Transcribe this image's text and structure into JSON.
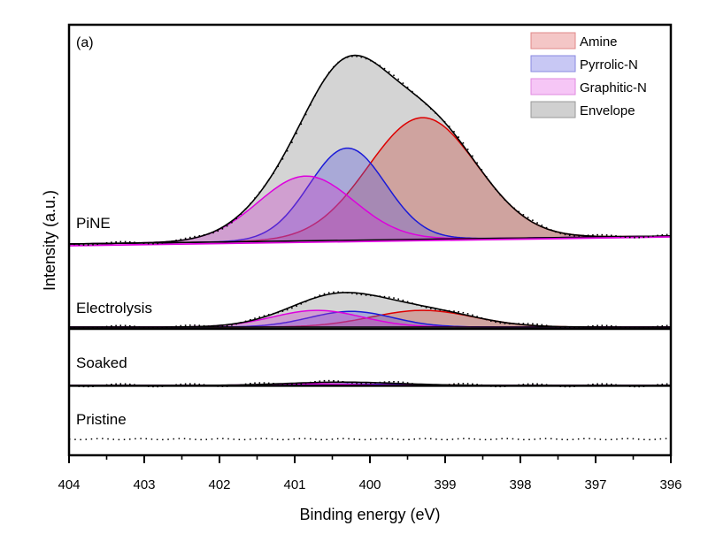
{
  "chart_data": {
    "type": "area",
    "panel_letter": "(a)",
    "xlabel": "Binding energy (eV)",
    "ylabel": "Intensity (a.u.)",
    "xlim": [
      404,
      396
    ],
    "x_reversed": true,
    "x_ticks": [
      404,
      403,
      402,
      401,
      400,
      399,
      398,
      397,
      396
    ],
    "x_tick_labels": [
      "404",
      "403",
      "402",
      "401",
      "400",
      "399",
      "398",
      "397",
      "396"
    ],
    "grid": false,
    "legend": {
      "placement": "top-right",
      "entries": [
        {
          "label": "Amine",
          "fill": "#f4c6c6",
          "stroke": "#e08888"
        },
        {
          "label": "Pyrrolic-N",
          "fill": "#c8c8f4",
          "stroke": "#8a8ae0"
        },
        {
          "label": "Graphitic-N",
          "fill": "#f6c6f6",
          "stroke": "#e08ae0"
        },
        {
          "label": "Envelope",
          "fill": "#d0d0d0",
          "stroke": "#999999"
        }
      ]
    },
    "colors": {
      "amine": "#dd0000",
      "pyrrolic": "#1a1ad8",
      "graphitic": "#dd00dd",
      "envelope": "#000000",
      "amine_fill": "rgba(200,90,80,0.40)",
      "pyrrolic_fill": "rgba(90,90,220,0.35)",
      "graphitic_fill": "rgba(200,60,200,0.35)",
      "envelope_fill": "rgba(170,170,170,0.50)"
    },
    "panels": [
      {
        "name": "PiNE",
        "label": "PiNE",
        "baseline": {
          "at_404": 0.0,
          "at_396": 0.04
        },
        "components": [
          {
            "name": "Amine",
            "center_eV": 399.3,
            "fwhm_eV": 1.7,
            "height": 0.62
          },
          {
            "name": "Pyrrolic-N",
            "center_eV": 400.3,
            "fwhm_eV": 1.2,
            "height": 0.47
          },
          {
            "name": "Graphitic-N",
            "center_eV": 400.85,
            "fwhm_eV": 1.5,
            "height": 0.33
          }
        ],
        "envelope_peak": {
          "x_eV": 400.15,
          "height": 1.0
        }
      },
      {
        "name": "Electrolysis",
        "label": "Electrolysis",
        "baseline": {
          "at_404": 0.0,
          "at_396": 0.0
        },
        "components": [
          {
            "name": "Amine",
            "center_eV": 399.3,
            "fwhm_eV": 1.6,
            "height": 0.085
          },
          {
            "name": "Pyrrolic-N",
            "center_eV": 400.25,
            "fwhm_eV": 1.3,
            "height": 0.08
          },
          {
            "name": "Graphitic-N",
            "center_eV": 400.7,
            "fwhm_eV": 1.4,
            "height": 0.085
          }
        ],
        "envelope_peak": {
          "x_eV": 400.2,
          "height": 0.17
        }
      },
      {
        "name": "Soaked",
        "label": "Soaked",
        "baseline": {
          "at_404": 0.0,
          "at_396": 0.0
        },
        "components": [
          {
            "name": "Amine",
            "center_eV": 399.8,
            "fwhm_eV": 1.4,
            "height": 0.006
          },
          {
            "name": "Pyrrolic-N",
            "center_eV": 400.3,
            "fwhm_eV": 1.3,
            "height": 0.007
          },
          {
            "name": "Graphitic-N",
            "center_eV": 400.8,
            "fwhm_eV": 1.4,
            "height": 0.008
          }
        ],
        "envelope_peak": {
          "x_eV": 400.5,
          "height": 0.014
        }
      },
      {
        "name": "Pristine",
        "label": "Pristine",
        "baseline": {
          "at_404": 0.0,
          "at_396": 0.0
        },
        "components": [],
        "envelope_peak": null,
        "note": "flat dotted raw data only, no fitted N 1s components"
      }
    ]
  }
}
